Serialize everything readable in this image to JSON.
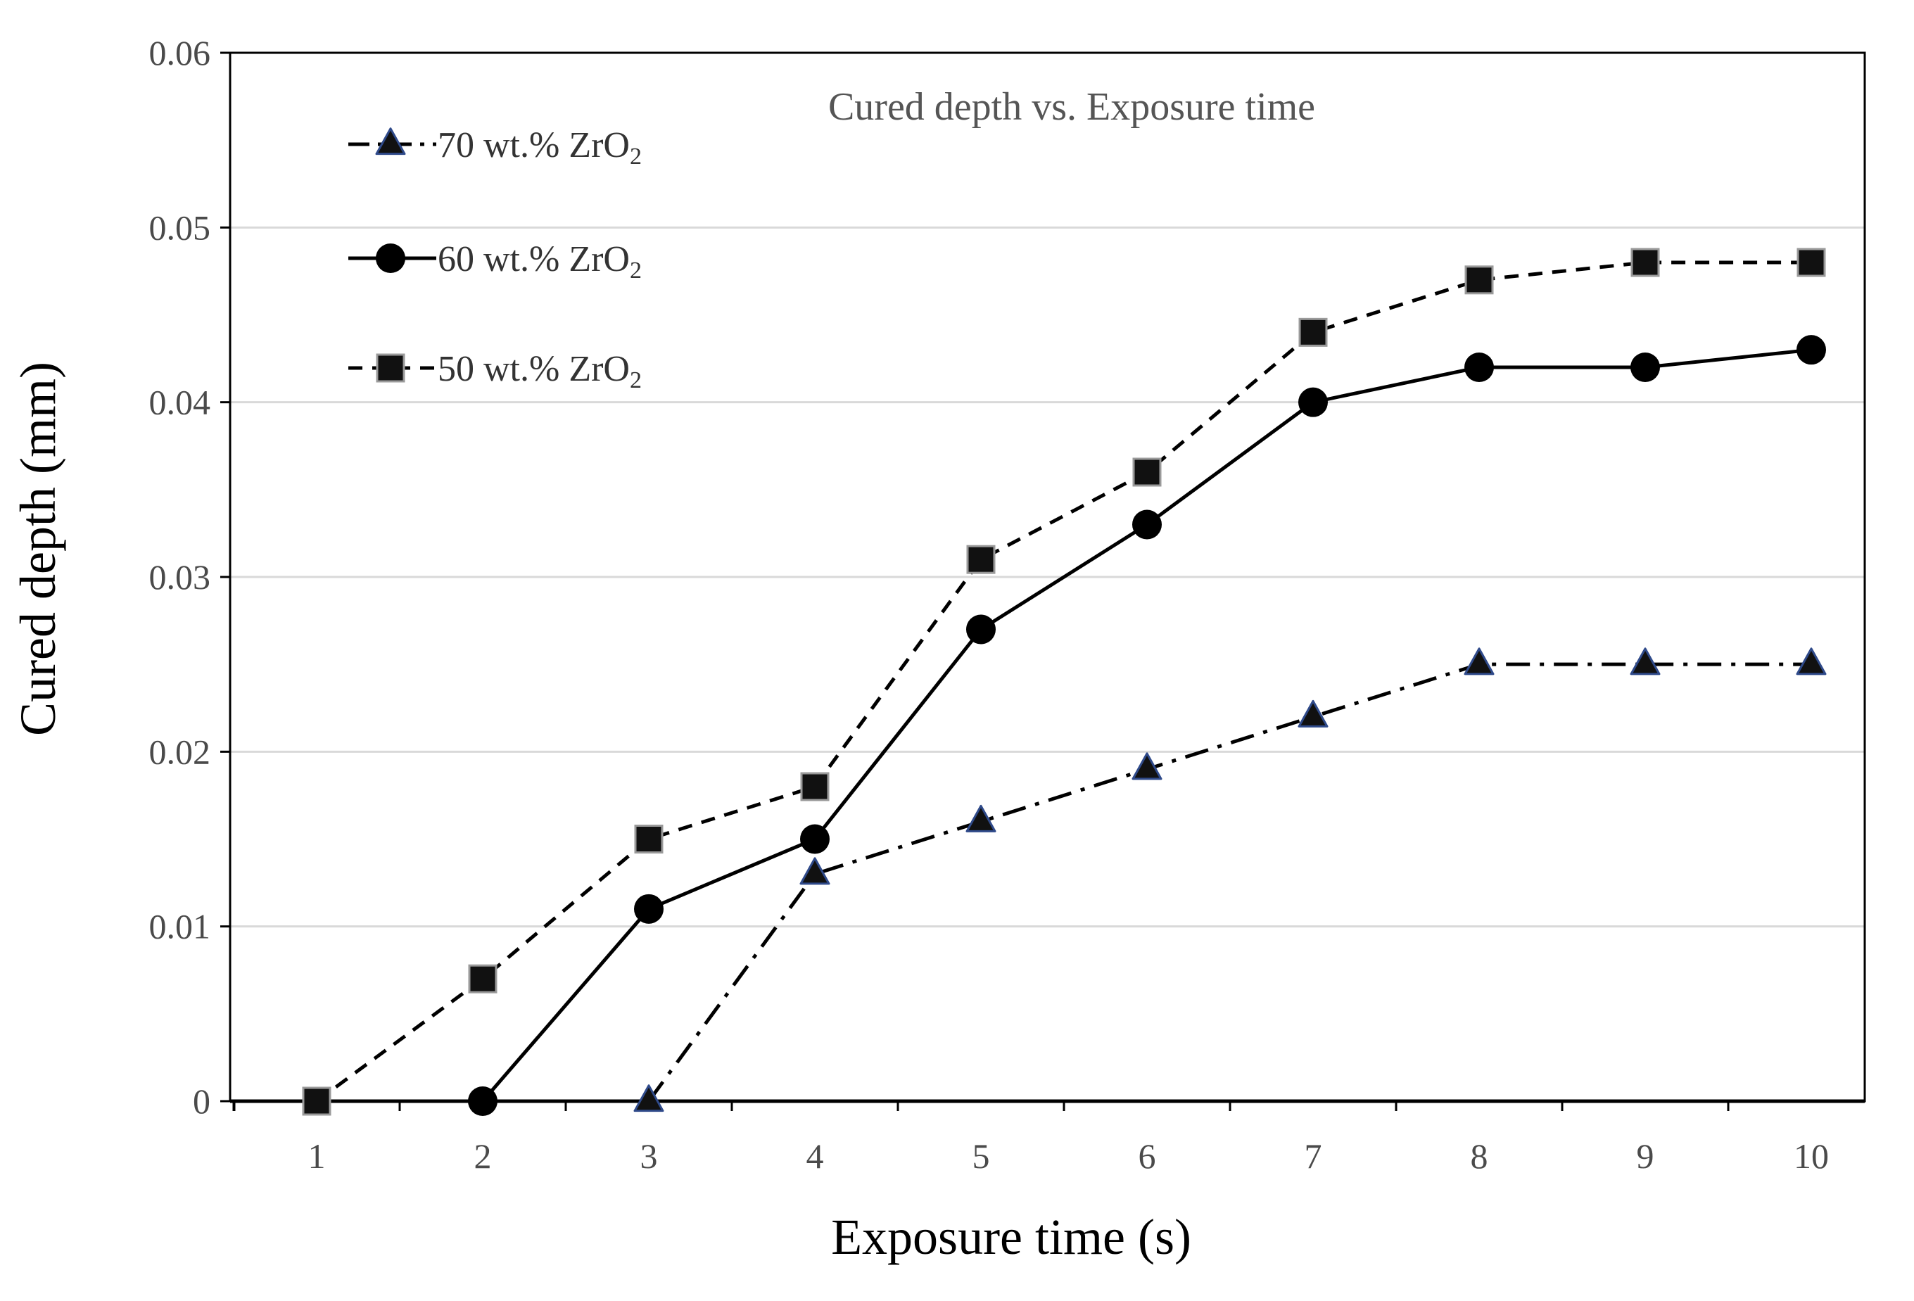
{
  "chart_data": {
    "type": "line",
    "title": "Cured depth vs. Exposure time",
    "xlabel": "Exposure time (s)",
    "ylabel": "Cured depth (mm)",
    "x": [
      1,
      2,
      3,
      4,
      5,
      6,
      7,
      8,
      9,
      10
    ],
    "x_tick_labels": [
      "1",
      "2",
      "3",
      "4",
      "5",
      "6",
      "7",
      "8",
      "9",
      "10"
    ],
    "y_tick_labels": [
      "0",
      "0.01",
      "0.02",
      "0.03",
      "0.04",
      "0.05",
      "0.06"
    ],
    "y_ticks": [
      0,
      0.01,
      0.02,
      0.03,
      0.04,
      0.05,
      0.06
    ],
    "ylim": [
      0,
      0.06
    ],
    "grid": "horizontal",
    "legend_position": "top-left",
    "series": [
      {
        "name": "70 wt.% ZrO",
        "name_subscript": "2",
        "marker": "triangle",
        "line_style": "dash-dot",
        "marker_color": "#111111",
        "marker_edge_color": "#2f4a8a",
        "values": [
          null,
          null,
          0,
          0.013,
          0.016,
          0.019,
          0.022,
          0.025,
          0.025,
          0.025
        ]
      },
      {
        "name": "60 wt.% ZrO",
        "name_subscript": "2",
        "marker": "circle",
        "line_style": "solid",
        "marker_color": "#000000",
        "values": [
          null,
          0,
          0.011,
          0.015,
          0.027,
          0.033,
          0.04,
          0.042,
          0.042,
          0.043
        ]
      },
      {
        "name": "50 wt.% ZrO",
        "name_subscript": "2",
        "marker": "square",
        "line_style": "dashed",
        "marker_color": "#111111",
        "values": [
          0,
          0.007,
          0.015,
          0.018,
          0.031,
          0.036,
          0.044,
          0.047,
          0.048,
          0.048
        ]
      }
    ]
  }
}
